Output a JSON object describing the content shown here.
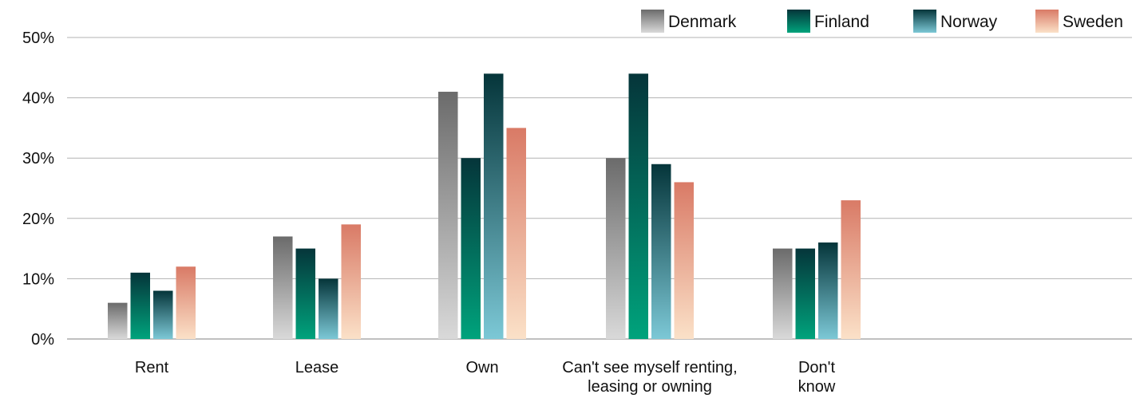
{
  "chart_data": {
    "type": "bar",
    "title": "",
    "xlabel": "",
    "ylabel": "",
    "ylim": [
      0,
      50
    ],
    "yticks": [
      "0%",
      "10%",
      "20%",
      "30%",
      "40%",
      "50%"
    ],
    "ytick_values": [
      0,
      10,
      20,
      30,
      40,
      50
    ],
    "grid": true,
    "legend_position": "top-right",
    "categories": [
      [
        "Rent"
      ],
      [
        "Lease"
      ],
      [
        "Own"
      ],
      [
        "Can't see myself renting,",
        "leasing or owning"
      ],
      [
        "Don't",
        "know"
      ]
    ],
    "series": [
      {
        "name": "Denmark",
        "values": [
          6,
          17,
          41,
          30,
          15
        ],
        "gradient": [
          "#6b6b6b",
          "#d9d9d9"
        ]
      },
      {
        "name": "Finland",
        "values": [
          11,
          15,
          30,
          44,
          15
        ],
        "gradient": [
          "#05353a",
          "#00a37c"
        ]
      },
      {
        "name": "Norway",
        "values": [
          8,
          10,
          44,
          29,
          16
        ],
        "gradient": [
          "#05353a",
          "#7cc8d6"
        ]
      },
      {
        "name": "Sweden",
        "values": [
          12,
          19,
          35,
          26,
          23
        ],
        "gradient": [
          "#d97a66",
          "#fbe1c8"
        ]
      }
    ]
  }
}
